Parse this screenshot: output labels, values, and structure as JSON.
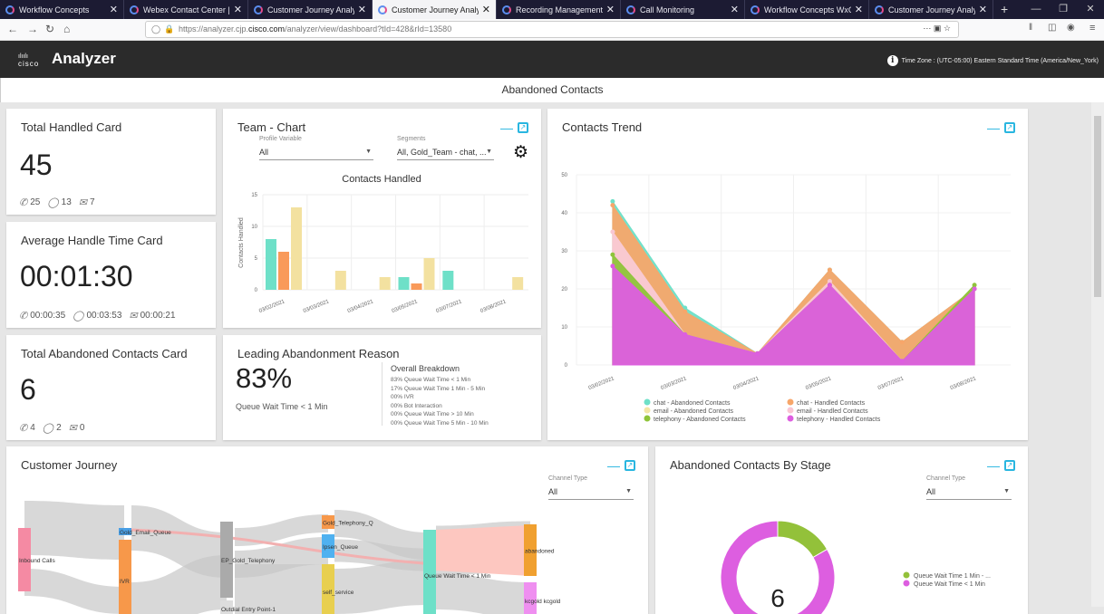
{
  "browser": {
    "tabs": [
      {
        "label": "Workflow Concepts"
      },
      {
        "label": "Webex Contact Center | My L"
      },
      {
        "label": "Customer Journey Analyzer"
      },
      {
        "label": "Customer Journey Analyzer",
        "active": true
      },
      {
        "label": "Recording Management"
      },
      {
        "label": "Call Monitoring"
      },
      {
        "label": "Workflow Concepts WxCC"
      },
      {
        "label": "Customer Journey Analyzer"
      }
    ],
    "url_prefix": "https://analyzer.cjp.",
    "url_domain": "cisco.com",
    "url_suffix": "/analyzer/view/dashboard?tId=428&rId=13580"
  },
  "app": {
    "logo": "cisco",
    "name": "Analyzer",
    "timezone": "Time Zone :  (UTC-05:00) Eastern Standard Time (America/New_York)"
  },
  "dashboard_title": "Abandoned Contacts",
  "cards": {
    "total_handled": {
      "title": "Total Handled Card",
      "value": "45",
      "phone": "25",
      "chat": "13",
      "email": "7"
    },
    "aht": {
      "title": "Average Handle Time Card",
      "value": "00:01:30",
      "phone": "00:00:35",
      "chat": "00:03:53",
      "email": "00:00:21"
    },
    "total_abandoned": {
      "title": "Total Abandoned Contacts Card",
      "value": "6",
      "phone": "4",
      "chat": "2",
      "email": "0"
    },
    "leading": {
      "title": "Leading Abandonment Reason",
      "value": "83%",
      "reason": "Queue Wait Time < 1 Min",
      "breakdown_title": "Overall Breakdown",
      "breakdown": [
        "83% Queue Wait Time < 1 Min",
        "17% Queue Wait Time 1 Min - 5 Min",
        "00% IVR",
        "00% Bot Interaction",
        "00% Queue Wait Time > 10 Min",
        "00% Queue Wait Time 5 Min - 10 Min"
      ]
    }
  },
  "team_chart": {
    "title": "Team - Chart",
    "profile_label": "Profile Variable",
    "profile_value": "All",
    "segments_label": "Segments",
    "segments_value": "All, Gold_Team - chat, ..."
  },
  "contacts_trend": {
    "title": "Contacts Trend"
  },
  "customer_journey": {
    "title": "Customer Journey",
    "channel_label": "Channel Type",
    "channel_value": "All",
    "nodes": [
      "Inbound Calls",
      "Gold_Email_Queue",
      "IVR",
      "EP_Gold_Telephony",
      "Outdial Entry Point-1",
      "Gold_Telephony_Q",
      "Ipsen_Queue",
      "self_service",
      "Queue Wait Time < 1 Min",
      "abandoned",
      "kcgold kcgold"
    ]
  },
  "abandoned_by_stage": {
    "title": "Abandoned Contacts By Stage",
    "channel_label": "Channel Type",
    "channel_value": "All"
  },
  "chart_data": [
    {
      "type": "bar",
      "title": "Contacts Handled",
      "ylabel": "Contacts Handled",
      "xlabel": "",
      "ylim": [
        0,
        15
      ],
      "yticks": [
        0,
        5,
        10,
        15
      ],
      "grid": true,
      "categories": [
        "03/02/2021",
        "03/03/2021",
        "03/04/2021",
        "03/05/2021",
        "03/07/2021",
        "03/08/2021"
      ],
      "series": [
        {
          "color": "#6ee0c8",
          "values": [
            8,
            0,
            0,
            2,
            3,
            0
          ]
        },
        {
          "color": "#f99a5a",
          "values": [
            6,
            0,
            0,
            1,
            0,
            0
          ]
        },
        {
          "color": "#f3e1a0",
          "values": [
            13,
            3,
            2,
            5,
            0,
            2
          ]
        }
      ]
    },
    {
      "type": "area",
      "title": "Contacts Trend",
      "ylim": [
        0,
        50
      ],
      "yticks": [
        0,
        10,
        20,
        30,
        40,
        50
      ],
      "grid": true,
      "legend": "bottom",
      "categories": [
        "03/02/2021",
        "03/03/2021",
        "03/04/2021",
        "03/05/2021",
        "03/07/2021",
        "03/08/2021"
      ],
      "series": [
        {
          "name": "chat - Abandoned Contacts",
          "color": "#6ee0c8",
          "values": [
            43,
            15,
            3,
            25,
            6,
            20
          ]
        },
        {
          "name": "chat - Handled Contacts",
          "color": "#f7a66a",
          "values": [
            42,
            14,
            3,
            25,
            6,
            20
          ]
        },
        {
          "name": "email - Abandoned Contacts",
          "color": "#f3e6a6",
          "values": [
            35,
            8,
            3,
            22,
            1,
            20
          ]
        },
        {
          "name": "email - Handled Contacts",
          "color": "#f9c7d3",
          "values": [
            35,
            8,
            3,
            22,
            1,
            20
          ]
        },
        {
          "name": "telephony - Abandoned Contacts",
          "color": "#8fc43a",
          "values": [
            29,
            8,
            3,
            21,
            1,
            21
          ]
        },
        {
          "name": "telephony - Handled Contacts",
          "color": "#dd5ee0",
          "values": [
            26,
            8,
            3,
            21,
            1,
            20
          ]
        }
      ]
    },
    {
      "type": "pie",
      "title": "Abandoned Contacts By Stage",
      "center_label": "6",
      "slices": [
        {
          "label": "Queue Wait Time 1 Min - ...",
          "value": 1,
          "color": "#93c13a"
        },
        {
          "label": "Queue Wait Time < 1 Min",
          "value": 5,
          "color": "#dd5ee0"
        }
      ]
    }
  ]
}
